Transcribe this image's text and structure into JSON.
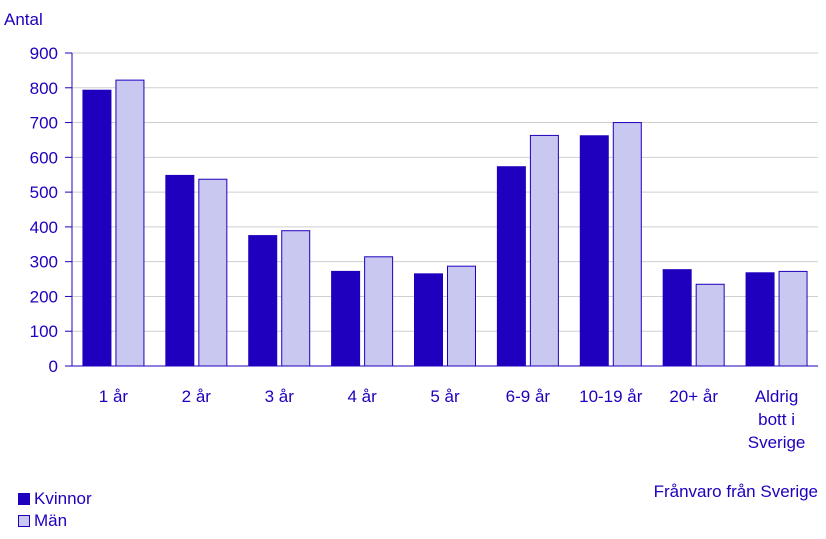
{
  "chart_data": {
    "type": "bar",
    "title": "",
    "ylabel": "Antal",
    "xlabel": "Frånvaro från Sverige",
    "ylim": [
      0,
      900
    ],
    "yticks": [
      0,
      100,
      200,
      300,
      400,
      500,
      600,
      700,
      800,
      900
    ],
    "grid": true,
    "legend_position": "bottom-left",
    "categories": [
      [
        "1 år"
      ],
      [
        "2 år"
      ],
      [
        "3 år"
      ],
      [
        "4 år"
      ],
      [
        "5 år"
      ],
      [
        "6-9 år"
      ],
      [
        "10-19 år"
      ],
      [
        "20+ år"
      ],
      [
        "Aldrig",
        "bott i",
        "Sverige"
      ]
    ],
    "series": [
      {
        "name": "Kvinnor",
        "color": "#1e00be",
        "values": [
          793,
          548,
          375,
          272,
          265,
          573,
          662,
          277,
          268
        ]
      },
      {
        "name": "Män",
        "color": "#c8c8f0",
        "values": [
          822,
          537,
          389,
          314,
          287,
          663,
          700,
          235,
          272
        ]
      }
    ]
  }
}
